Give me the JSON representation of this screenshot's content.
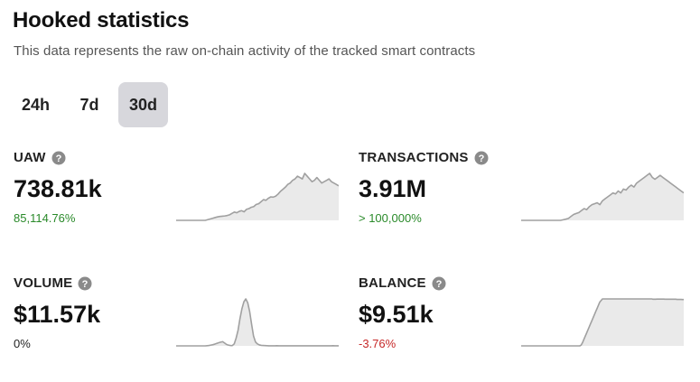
{
  "header": {
    "title": "Hooked statistics",
    "subtitle": "This data represents the raw on-chain activity of the tracked smart contracts"
  },
  "tabs": [
    {
      "label": "24h",
      "active": false
    },
    {
      "label": "7d",
      "active": false
    },
    {
      "label": "30d",
      "active": true
    }
  ],
  "metrics": {
    "uaw": {
      "label": "UAW",
      "value": "738.81k",
      "change": "85,114.76%",
      "trend": "positive",
      "icon": "help-icon",
      "sparkline": [
        0,
        0,
        0,
        0,
        0,
        0,
        0,
        0,
        0,
        0,
        0,
        0,
        0,
        0.5,
        1,
        1.5,
        2,
        2.5,
        2.8,
        3,
        3.2,
        3.5,
        4,
        5,
        6,
        5.5,
        6.5,
        7,
        6.2,
        8,
        8.5,
        9.5,
        10,
        11.5,
        12,
        13.5,
        15,
        14.5,
        16,
        17,
        16.8,
        17.5,
        19,
        21,
        22.5,
        24,
        26,
        27,
        29,
        30,
        32,
        31,
        30,
        34,
        32,
        30,
        28,
        29,
        31,
        29,
        27,
        28,
        29,
        30,
        28,
        27,
        26,
        25
      ]
    },
    "transactions": {
      "label": "TRANSACTIONS",
      "value": "3.91M",
      "change": "> 100,000%",
      "trend": "positive",
      "icon": "help-icon",
      "sparkline": [
        0,
        0,
        0,
        0,
        0,
        0,
        0,
        0,
        0,
        0,
        0,
        0,
        0,
        0,
        0,
        0,
        0.3,
        0.6,
        1,
        2,
        3,
        3.5,
        4,
        5,
        6,
        5.5,
        7,
        8,
        8.5,
        9,
        8,
        10,
        11,
        12,
        13,
        14,
        13.5,
        15,
        14,
        16,
        15.5,
        17,
        18,
        17,
        19,
        20,
        21,
        22,
        23,
        24,
        22,
        21,
        22,
        23,
        22,
        21,
        20,
        19,
        18,
        17,
        16,
        15,
        14
      ]
    },
    "volume": {
      "label": "VOLUME",
      "value": "$11.57k",
      "change": "0%",
      "trend": "neutral",
      "icon": "help-icon",
      "sparkline": [
        0,
        0,
        0,
        0,
        0,
        0,
        0,
        0,
        0,
        0,
        0,
        0,
        0,
        0,
        0,
        0,
        0.2,
        0.4,
        0.8,
        1.2,
        1.8,
        2.5,
        3.2,
        3.8,
        4.3,
        3,
        1.5,
        0.8,
        0.4,
        0.3,
        2,
        8,
        16,
        28,
        38,
        45,
        48,
        44,
        35,
        22,
        10,
        4,
        2,
        1,
        0.5,
        0.4,
        0.3,
        0.2,
        0.1,
        0.1,
        0.1,
        0.1,
        0.2,
        0.1,
        0.1,
        0.1,
        0.1,
        0.1,
        0.1,
        0.1,
        0.1,
        0.1,
        0.1,
        0.1,
        0.1,
        0.1,
        0.1,
        0.1,
        0.1,
        0.1,
        0.1,
        0.1,
        0.1,
        0.1,
        0.1,
        0.1,
        0.1,
        0.1,
        0.1,
        0.1,
        0.1,
        0.2,
        0.1,
        0.1,
        0.1
      ]
    },
    "balance": {
      "label": "BALANCE",
      "value": "$9.51k",
      "change": "-3.76%",
      "trend": "negative",
      "icon": "help-icon",
      "sparkline": [
        0,
        0,
        0,
        0,
        0,
        0,
        0,
        0,
        0,
        0,
        0,
        0,
        0,
        0,
        0,
        0,
        0,
        0,
        0,
        0,
        0,
        0,
        0,
        0,
        0,
        0,
        0,
        0,
        0,
        0,
        0,
        0,
        0,
        0,
        0,
        0,
        0,
        0,
        0,
        0,
        0,
        0,
        0,
        0,
        0,
        0.5,
        2,
        4,
        6,
        8,
        10,
        12,
        14,
        16,
        18,
        20,
        22,
        24,
        26,
        28,
        29,
        30,
        30,
        30,
        30,
        30,
        30,
        30,
        30,
        30,
        30,
        30,
        30,
        30,
        30,
        30,
        30,
        30,
        30,
        30,
        30,
        30,
        30,
        30,
        30,
        30,
        30,
        30,
        30,
        30,
        30,
        30,
        30,
        30,
        30,
        30,
        30,
        30,
        30,
        29.8,
        29.8,
        29.8,
        29.9,
        29.9,
        29.9,
        29.9,
        29.9,
        29.9,
        29.8,
        29.8,
        29.8,
        29.8,
        29.8,
        29.8,
        29.8,
        29.8,
        29.8,
        29.7,
        29.7,
        29.7,
        29.7,
        29.6,
        29.6
      ]
    }
  },
  "colors": {
    "tab_active_bg": "#d7d7dc",
    "positive": "#2a8a2a",
    "negative": "#c62828",
    "spark_line": "#a0a0a0",
    "spark_fill": "#eaeaea"
  }
}
